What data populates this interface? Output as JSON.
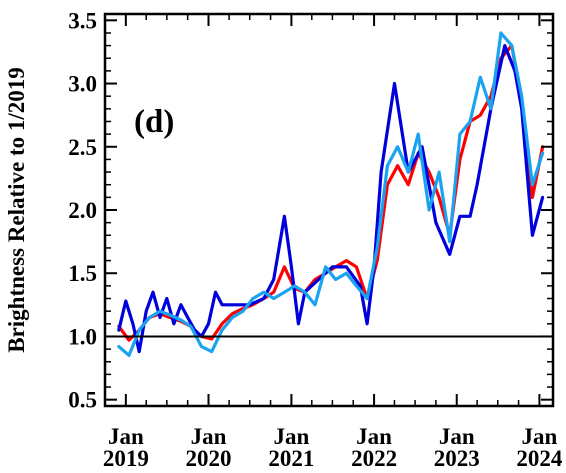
{
  "chart_data": {
    "type": "line",
    "panel_label": "(d)",
    "ylabel": "Brightness Relative to 1/2019",
    "xlabel": "",
    "xlim": [
      "2018-10-01",
      "2024-03-01"
    ],
    "ylim": [
      0.45,
      3.55
    ],
    "y_ticks": [
      0.5,
      1.0,
      1.5,
      2.0,
      2.5,
      3.0,
      3.5
    ],
    "y_tick_labels": [
      "0.5",
      "1.0",
      "1.5",
      "2.0",
      "2.5",
      "3.0",
      "3.5"
    ],
    "x_ticks": [
      "2019-01-01",
      "2020-01-01",
      "2021-01-01",
      "2022-01-01",
      "2023-01-01",
      "2024-01-01"
    ],
    "x_tick_labels": [
      [
        "Jan",
        "2019"
      ],
      [
        "Jan",
        "2020"
      ],
      [
        "Jan",
        "2021"
      ],
      [
        "Jan",
        "2022"
      ],
      [
        "Jan",
        "2023"
      ],
      [
        "Jan",
        "2024"
      ]
    ],
    "reference_line": 1.0,
    "grid": false,
    "series": [
      {
        "color": "#ff0000",
        "points": [
          [
            "2018-12-01",
            1.08
          ],
          [
            "2019-01-15",
            0.97
          ],
          [
            "2019-03-01",
            1.05
          ],
          [
            "2019-04-15",
            1.15
          ],
          [
            "2019-06-01",
            1.18
          ],
          [
            "2019-07-15",
            1.15
          ],
          [
            "2019-09-01",
            1.12
          ],
          [
            "2019-10-15",
            1.08
          ],
          [
            "2019-12-01",
            1.0
          ],
          [
            "2020-01-15",
            0.98
          ],
          [
            "2020-03-01",
            1.1
          ],
          [
            "2020-04-15",
            1.18
          ],
          [
            "2020-06-01",
            1.22
          ],
          [
            "2020-07-15",
            1.25
          ],
          [
            "2020-09-01",
            1.3
          ],
          [
            "2020-10-15",
            1.35
          ],
          [
            "2020-12-01",
            1.55
          ],
          [
            "2021-01-15",
            1.38
          ],
          [
            "2021-03-01",
            1.35
          ],
          [
            "2021-04-15",
            1.45
          ],
          [
            "2021-06-01",
            1.5
          ],
          [
            "2021-07-15",
            1.55
          ],
          [
            "2021-09-01",
            1.6
          ],
          [
            "2021-10-15",
            1.55
          ],
          [
            "2021-12-01",
            1.3
          ],
          [
            "2022-01-15",
            1.6
          ],
          [
            "2022-03-01",
            2.2
          ],
          [
            "2022-04-15",
            2.35
          ],
          [
            "2022-06-01",
            2.2
          ],
          [
            "2022-07-15",
            2.45
          ],
          [
            "2022-09-01",
            2.3
          ],
          [
            "2022-10-15",
            2.1
          ],
          [
            "2022-12-01",
            1.8
          ],
          [
            "2023-01-15",
            2.4
          ],
          [
            "2023-03-01",
            2.7
          ],
          [
            "2023-04-15",
            2.75
          ],
          [
            "2023-06-01",
            2.9
          ],
          [
            "2023-07-15",
            3.2
          ],
          [
            "2023-09-01",
            3.3
          ],
          [
            "2023-10-15",
            2.85
          ],
          [
            "2023-12-01",
            2.1
          ],
          [
            "2024-01-15",
            2.5
          ]
        ]
      },
      {
        "color": "#0000dd",
        "points": [
          [
            "2018-12-01",
            1.05
          ],
          [
            "2019-01-01",
            1.28
          ],
          [
            "2019-02-01",
            1.1
          ],
          [
            "2019-03-01",
            0.88
          ],
          [
            "2019-04-01",
            1.2
          ],
          [
            "2019-05-01",
            1.35
          ],
          [
            "2019-06-01",
            1.15
          ],
          [
            "2019-07-01",
            1.3
          ],
          [
            "2019-08-01",
            1.1
          ],
          [
            "2019-09-01",
            1.25
          ],
          [
            "2019-10-01",
            1.15
          ],
          [
            "2019-11-01",
            1.05
          ],
          [
            "2019-12-01",
            1.0
          ],
          [
            "2020-01-01",
            1.1
          ],
          [
            "2020-02-01",
            1.35
          ],
          [
            "2020-03-01",
            1.25
          ],
          [
            "2020-05-01",
            1.25
          ],
          [
            "2020-07-01",
            1.25
          ],
          [
            "2020-09-01",
            1.3
          ],
          [
            "2020-10-15",
            1.45
          ],
          [
            "2020-12-01",
            1.95
          ],
          [
            "2021-01-01",
            1.55
          ],
          [
            "2021-02-01",
            1.1
          ],
          [
            "2021-03-01",
            1.35
          ],
          [
            "2021-05-01",
            1.45
          ],
          [
            "2021-07-01",
            1.55
          ],
          [
            "2021-09-01",
            1.55
          ],
          [
            "2021-11-01",
            1.4
          ],
          [
            "2021-12-01",
            1.1
          ],
          [
            "2022-01-01",
            1.55
          ],
          [
            "2022-02-01",
            2.3
          ],
          [
            "2022-04-01",
            3.0
          ],
          [
            "2022-06-01",
            2.3
          ],
          [
            "2022-08-01",
            2.5
          ],
          [
            "2022-10-01",
            1.9
          ],
          [
            "2022-12-01",
            1.65
          ],
          [
            "2023-01-15",
            1.95
          ],
          [
            "2023-03-01",
            1.95
          ],
          [
            "2023-04-01",
            2.2
          ],
          [
            "2023-06-01",
            2.8
          ],
          [
            "2023-08-01",
            3.3
          ],
          [
            "2023-09-15",
            3.1
          ],
          [
            "2023-10-15",
            2.8
          ],
          [
            "2023-12-01",
            1.8
          ],
          [
            "2024-01-15",
            2.1
          ]
        ]
      },
      {
        "color": "#1aa3f0",
        "points": [
          [
            "2018-12-01",
            0.92
          ],
          [
            "2019-01-15",
            0.85
          ],
          [
            "2019-03-01",
            1.05
          ],
          [
            "2019-04-15",
            1.15
          ],
          [
            "2019-06-01",
            1.2
          ],
          [
            "2019-07-15",
            1.17
          ],
          [
            "2019-09-01",
            1.13
          ],
          [
            "2019-10-15",
            1.08
          ],
          [
            "2019-12-01",
            0.92
          ],
          [
            "2020-01-15",
            0.88
          ],
          [
            "2020-03-01",
            1.05
          ],
          [
            "2020-04-15",
            1.15
          ],
          [
            "2020-06-01",
            1.2
          ],
          [
            "2020-07-15",
            1.3
          ],
          [
            "2020-09-01",
            1.35
          ],
          [
            "2020-10-15",
            1.3
          ],
          [
            "2020-12-01",
            1.35
          ],
          [
            "2021-01-15",
            1.4
          ],
          [
            "2021-03-01",
            1.35
          ],
          [
            "2021-04-15",
            1.25
          ],
          [
            "2021-06-01",
            1.55
          ],
          [
            "2021-07-15",
            1.45
          ],
          [
            "2021-09-01",
            1.5
          ],
          [
            "2021-10-15",
            1.4
          ],
          [
            "2021-12-01",
            1.3
          ],
          [
            "2022-01-15",
            1.7
          ],
          [
            "2022-03-01",
            2.35
          ],
          [
            "2022-04-15",
            2.5
          ],
          [
            "2022-06-01",
            2.3
          ],
          [
            "2022-07-15",
            2.6
          ],
          [
            "2022-09-01",
            2.0
          ],
          [
            "2022-10-15",
            2.3
          ],
          [
            "2022-12-01",
            1.75
          ],
          [
            "2023-01-15",
            2.6
          ],
          [
            "2023-03-01",
            2.7
          ],
          [
            "2023-04-15",
            3.05
          ],
          [
            "2023-06-01",
            2.8
          ],
          [
            "2023-07-15",
            3.4
          ],
          [
            "2023-09-01",
            3.3
          ],
          [
            "2023-10-15",
            2.9
          ],
          [
            "2023-12-01",
            2.2
          ],
          [
            "2024-01-15",
            2.45
          ]
        ]
      }
    ]
  }
}
